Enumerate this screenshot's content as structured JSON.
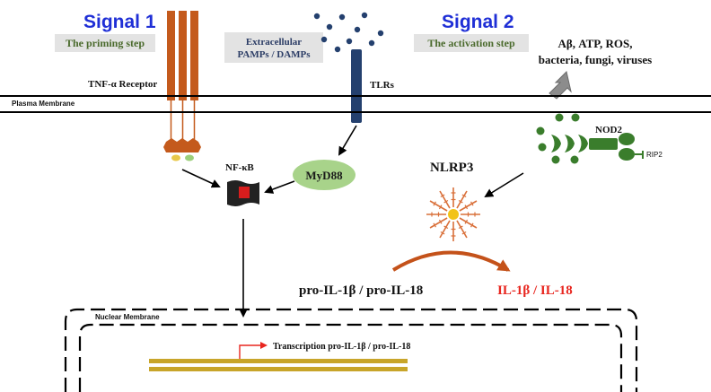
{
  "signal1": {
    "title": "Signal 1",
    "subtitle": "The priming step"
  },
  "signal2": {
    "title": "Signal 2",
    "subtitle": "The activation step"
  },
  "pamps": {
    "line1": "Extracellular",
    "line2": "PAMPs / DAMPs"
  },
  "stimuli": {
    "line1": "Aβ, ATP, ROS,",
    "line2": "bacteria, fungi, viruses"
  },
  "labels": {
    "tnf_receptor": "TNF-α Receptor",
    "plasma_membrane": "Plasma Membrane",
    "tlrs": "TLRs",
    "nod2": "NOD2",
    "rip2": "RIP2",
    "nfkb": "NF-κB",
    "myd88": "MyD88",
    "nlrp3": "NLRP3",
    "pro_il": "pro-IL-1β / pro-IL-18",
    "il": "IL-1β / IL-18",
    "nuclear_membrane": "Nuclear Membrane",
    "transcription": "Transcription pro-IL-1β / pro-IL-18"
  },
  "colors": {
    "signal_title": "#1f2fd6",
    "receptor": "#c45a1c",
    "tlr": "#24406e",
    "myd88": "#a8d38a",
    "nod2": "#3a7d2c",
    "nlrp3_spoke": "#d9703a",
    "nlrp3_core": "#f2c318",
    "il_text": "#e8261f",
    "dna": "#c8a52a"
  }
}
